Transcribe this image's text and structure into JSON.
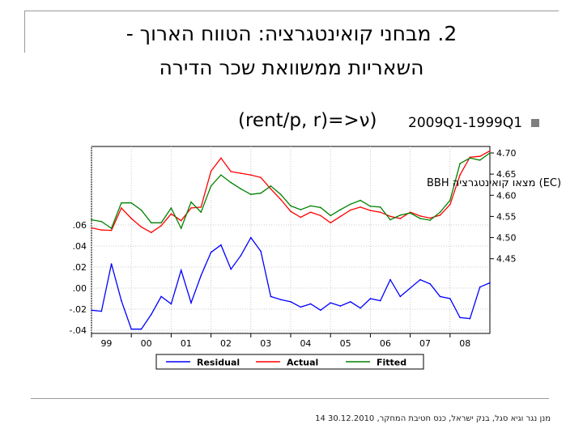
{
  "slide": {
    "title_line1": "2. מבחני קואינטגרציה: הטווח הארוך -",
    "title_line2": "השאריות ממשוואת שכר הדירה",
    "period": "2009Q1-1999Q1",
    "formula": "(rent/p, r)=>ν)",
    "footer": "מנן נגר וגיא סגל, בנק ישראל, כנס חטיבת המחקר, 30.12.2010",
    "page_number": "14"
  },
  "colors": {
    "residual": "#0000ff",
    "actual": "#ff0000",
    "fitted": "#008000",
    "bullet": "#7f7f7f"
  },
  "chart_data": {
    "type": "line",
    "annotation": "(EC) מצאו קואינטגרציה BBH",
    "x": [
      "1999Q1",
      "1999Q2",
      "1999Q3",
      "1999Q4",
      "2000Q1",
      "2000Q2",
      "2000Q3",
      "2000Q4",
      "2001Q1",
      "2001Q2",
      "2001Q3",
      "2001Q4",
      "2002Q1",
      "2002Q2",
      "2002Q3",
      "2002Q4",
      "2003Q1",
      "2003Q2",
      "2003Q3",
      "2003Q4",
      "2004Q1",
      "2004Q2",
      "2004Q3",
      "2004Q4",
      "2005Q1",
      "2005Q2",
      "2005Q3",
      "2005Q4",
      "2006Q1",
      "2006Q2",
      "2006Q3",
      "2006Q4",
      "2007Q1",
      "2007Q2",
      "2007Q3",
      "2007Q4",
      "2008Q1",
      "2008Q2",
      "2008Q3",
      "2008Q4",
      "2009Q1"
    ],
    "x_tick_labels": [
      "99",
      "00",
      "01",
      "02",
      "03",
      "04",
      "05",
      "06",
      "07",
      "08"
    ],
    "left_axis": {
      "series": "Residual",
      "ticks": [
        ".06",
        ".04",
        ".02",
        ".00",
        "-.02",
        "-.04"
      ],
      "range": [
        -0.04,
        0.06
      ]
    },
    "right_axis": {
      "series": [
        "Actual",
        "Fitted"
      ],
      "ticks": [
        "4.70",
        "4.65",
        "4.60",
        "4.55",
        "4.50",
        "4.45"
      ],
      "range": [
        4.35,
        4.7
      ]
    },
    "series": [
      {
        "name": "Residual",
        "axis": "left",
        "values": [
          -0.021,
          -0.022,
          0.023,
          -0.012,
          -0.039,
          -0.039,
          -0.025,
          -0.008,
          -0.015,
          0.017,
          -0.014,
          0.012,
          0.034,
          0.041,
          0.018,
          0.031,
          0.048,
          0.035,
          -0.008,
          -0.011,
          -0.013,
          -0.018,
          -0.015,
          -0.021,
          -0.014,
          -0.017,
          -0.013,
          -0.019,
          -0.01,
          -0.012,
          0.008,
          -0.008,
          0.0,
          0.008,
          0.004,
          -0.008,
          -0.01,
          -0.028,
          -0.029,
          0.001,
          0.005
        ]
      },
      {
        "name": "Actual",
        "axis": "right",
        "values": [
          4.523,
          4.518,
          4.517,
          4.57,
          4.545,
          4.525,
          4.512,
          4.528,
          4.556,
          4.54,
          4.57,
          4.572,
          4.657,
          4.688,
          4.656,
          4.652,
          4.648,
          4.642,
          4.615,
          4.59,
          4.562,
          4.548,
          4.56,
          4.552,
          4.535,
          4.55,
          4.565,
          4.572,
          4.564,
          4.56,
          4.55,
          4.545,
          4.56,
          4.551,
          4.546,
          4.553,
          4.578,
          4.648,
          4.69,
          4.692,
          4.705
        ]
      },
      {
        "name": "Fitted",
        "axis": "right",
        "values": [
          4.542,
          4.538,
          4.522,
          4.582,
          4.582,
          4.565,
          4.535,
          4.535,
          4.57,
          4.522,
          4.584,
          4.56,
          4.622,
          4.648,
          4.63,
          4.615,
          4.602,
          4.605,
          4.622,
          4.602,
          4.575,
          4.566,
          4.575,
          4.571,
          4.552,
          4.566,
          4.579,
          4.588,
          4.574,
          4.572,
          4.542,
          4.553,
          4.558,
          4.545,
          4.541,
          4.56,
          4.588,
          4.675,
          4.688,
          4.683,
          4.7
        ]
      }
    ],
    "legend": {
      "placement": "bottom",
      "entries": [
        "Residual",
        "Actual",
        "Fitted"
      ]
    },
    "grid": true
  }
}
